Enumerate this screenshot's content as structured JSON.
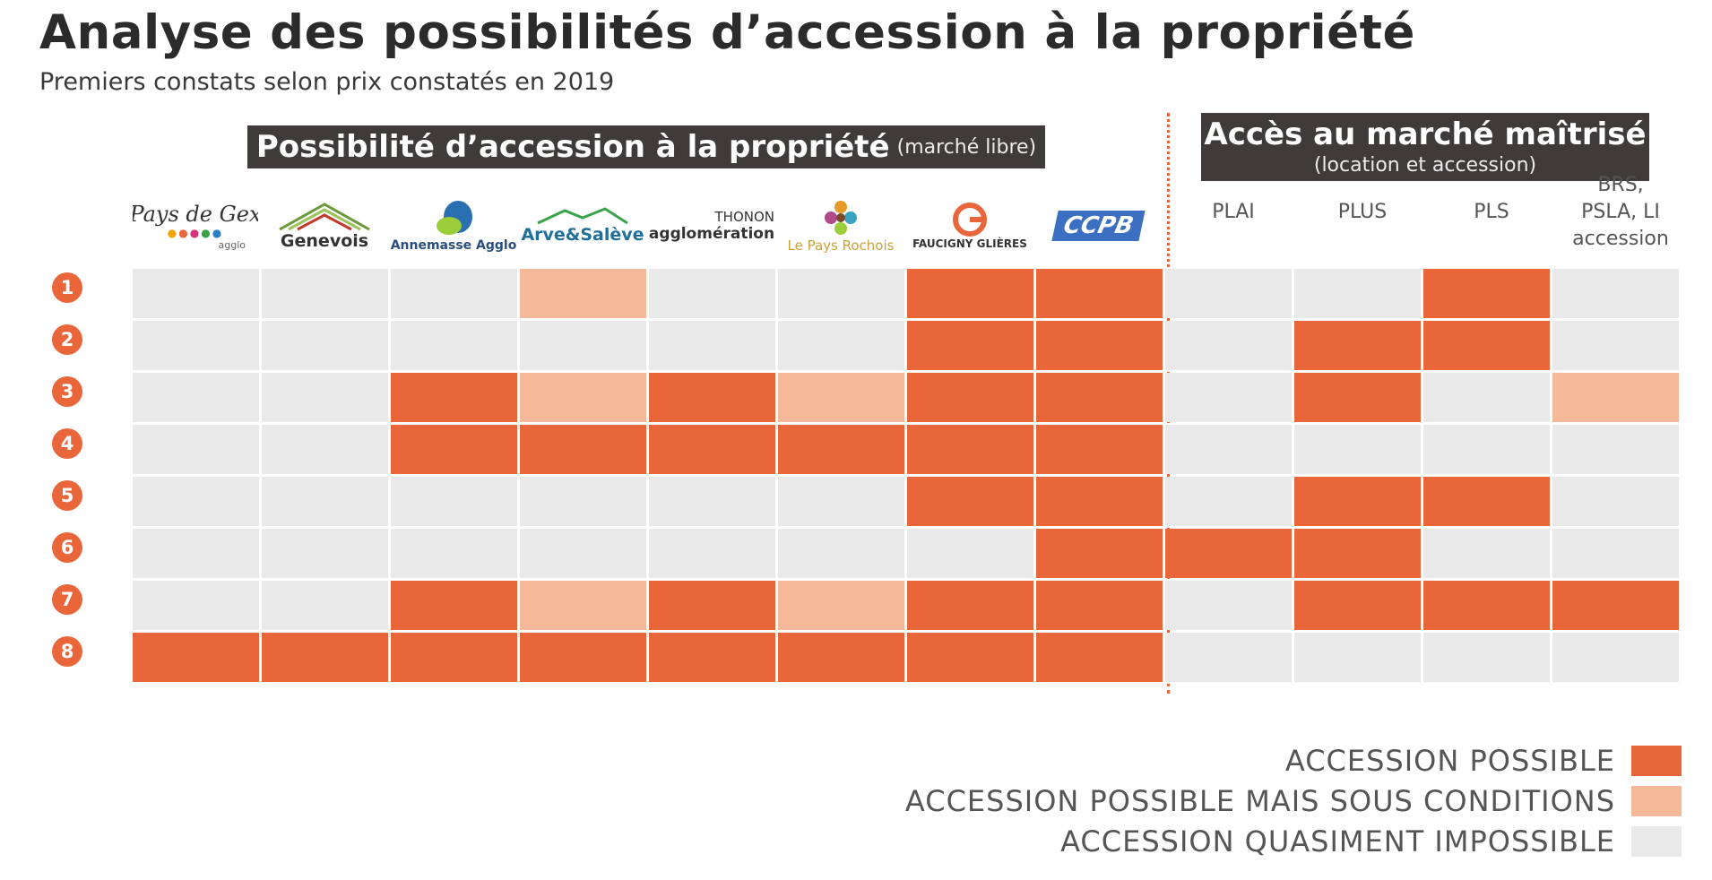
{
  "title": "Analyse des possibilités d’accession à la propriété",
  "subtitle": "Premiers constats selon prix constatés en 2019",
  "banner_left": {
    "main": "Possibilité d’accession à la propriété",
    "small": "(marché libre)"
  },
  "banner_right": {
    "main": "Accès au marché maîtrisé",
    "small": "(location et accession)"
  },
  "logos": [
    {
      "name": "pays-de-gex-logo",
      "lines": [
        "Pays de Gex",
        "agglo"
      ]
    },
    {
      "name": "genevois-logo",
      "lines": [
        "Genevois"
      ]
    },
    {
      "name": "annemasse-agglo-logo",
      "lines": [
        "Annemasse Agglo"
      ]
    },
    {
      "name": "arve-saleve-logo",
      "lines": [
        "Arve&Salève"
      ]
    },
    {
      "name": "thonon-agglomeration-logo",
      "lines": [
        "THONON",
        "agglomération"
      ]
    },
    {
      "name": "pays-rochois-logo",
      "lines": [
        "Le Pays Rochois"
      ]
    },
    {
      "name": "faucigny-glieres-logo",
      "lines": [
        "FAUCIGNY GLIÈRES"
      ]
    },
    {
      "name": "ccpb-logo",
      "lines": [
        "CCPB"
      ]
    }
  ],
  "market_columns": [
    "PLAI",
    "PLUS",
    "PLS",
    "BRS,\nPSLA, LI\naccession"
  ],
  "colors": {
    "possible": "#e8663a",
    "conditional": "#f5b999",
    "impossible": "#e9e9e9",
    "accent": "#e8663a",
    "banner": "#3f3b3a"
  },
  "chart_data": {
    "type": "heatmap",
    "rows": [
      "1",
      "2",
      "3",
      "4",
      "5",
      "6",
      "7",
      "8"
    ],
    "columns": [
      "Pays de Gex",
      "Genevois",
      "Annemasse Agglo",
      "Arve&Salève",
      "Thonon agglomération",
      "Le Pays Rochois",
      "Faucigny Glières",
      "CCPB",
      "PLAI",
      "PLUS",
      "PLS",
      "BRS, PSLA, LI accession"
    ],
    "values": [
      [
        0,
        0,
        0,
        1,
        0,
        0,
        2,
        2,
        0,
        0,
        2,
        0
      ],
      [
        0,
        0,
        0,
        0,
        0,
        0,
        2,
        2,
        0,
        2,
        2,
        0
      ],
      [
        0,
        0,
        2,
        1,
        2,
        1,
        2,
        2,
        0,
        2,
        0,
        1
      ],
      [
        0,
        0,
        2,
        2,
        2,
        2,
        2,
        2,
        0,
        0,
        0,
        0
      ],
      [
        0,
        0,
        0,
        0,
        0,
        0,
        2,
        2,
        0,
        2,
        2,
        0
      ],
      [
        0,
        0,
        0,
        0,
        0,
        0,
        0,
        2,
        2,
        2,
        0,
        0
      ],
      [
        0,
        0,
        2,
        1,
        2,
        1,
        2,
        2,
        0,
        2,
        2,
        2
      ],
      [
        2,
        2,
        2,
        2,
        2,
        2,
        2,
        2,
        0,
        0,
        0,
        0
      ]
    ],
    "legend": [
      {
        "value": 2,
        "label": "ACCESSION POSSIBLE"
      },
      {
        "value": 1,
        "label": "ACCESSION POSSIBLE MAIS SOUS CONDITIONS"
      },
      {
        "value": 0,
        "label": "ACCESSION QUASIMENT IMPOSSIBLE"
      }
    ]
  }
}
